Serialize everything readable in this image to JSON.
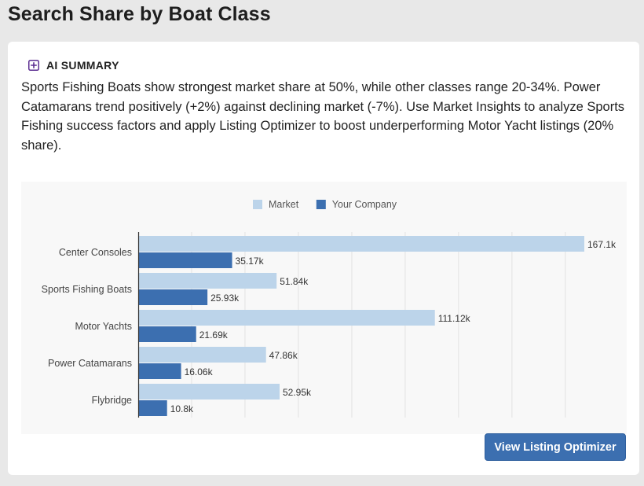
{
  "page": {
    "title": "Search Share by Boat Class"
  },
  "summary": {
    "label": "AI SUMMARY",
    "icon": "ai-sparkle-icon",
    "text": "Sports Fishing Boats show strongest market share at 50%, while other classes range 20-34%. Power Catamarans trend positively (+2%) against declining market (-7%). Use Market Insights to analyze Sports Fishing success factors and apply Listing Optimizer to boost underperforming Motor Yacht listings (20% share)."
  },
  "actions": {
    "optimizer_label": "View Listing Optimizer"
  },
  "colors": {
    "market": "#bcd4ea",
    "company": "#3c6fb0",
    "accent": "#5b2d91"
  },
  "chart_data": {
    "type": "bar",
    "orientation": "horizontal",
    "title": "",
    "categories": [
      "Center Consoles",
      "Sports Fishing Boats",
      "Motor Yachts",
      "Power Catamarans",
      "Flybridge"
    ],
    "series": [
      {
        "name": "Market",
        "values": [
          167100,
          51840,
          111120,
          47860,
          52950
        ],
        "labels": [
          "167.1k",
          "51.84k",
          "111.12k",
          "47.86k",
          "52.95k"
        ]
      },
      {
        "name": "Your Company",
        "values": [
          35170,
          25930,
          21690,
          16060,
          10800
        ],
        "labels": [
          "35.17k",
          "25.93k",
          "21.69k",
          "16.06k",
          "10.8k"
        ]
      }
    ],
    "xlim": [
      0,
      180000
    ],
    "grid": true,
    "legend": "top-center",
    "xlabel": "",
    "ylabel": ""
  }
}
